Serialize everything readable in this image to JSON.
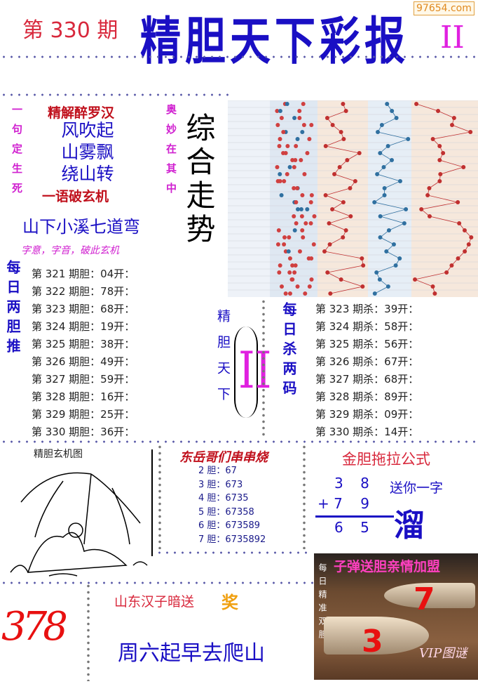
{
  "header": {
    "issue": "第 330 期",
    "title": "精胆天下彩报",
    "title_suffix": "II",
    "watermark": "97654.com"
  },
  "riddle": {
    "left_vertical": "一句定生死",
    "right_vertical": "奥妙在其中",
    "heading": "精解醉罗汉",
    "lines": [
      "风吹起",
      "山雾飘",
      "绕山转"
    ],
    "footer": "一语破玄机",
    "answer": "山下小溪七道弯",
    "hint": "字意，字音，破此玄机"
  },
  "trend": {
    "label": "综合走势"
  },
  "daily_bile": {
    "label": "每日两胆推",
    "rows": [
      "第 321 期胆：04开：",
      "第 322 期胆：78开：",
      "第 323 期胆：68开：",
      "第 324 期胆：19开：",
      "第 325 期胆：38开：",
      "第 326 期胆：49开：",
      "第 327 期胆：59开：",
      "第 328 期胆：16开：",
      "第 329 期胆：25开：",
      "第 330 期胆：36开："
    ]
  },
  "center_mark": {
    "label": "精胆天下",
    "numeral": "II"
  },
  "daily_kill": {
    "label": "每日杀两码",
    "rows": [
      "第 323 期杀：39开：",
      "第 324 期杀：58开：",
      "第 325 期杀：56开：",
      "第 326 期杀：67开：",
      "第 327 期杀：68开：",
      "第 328 期杀：89开：",
      "第 329 期杀：09开：",
      "第 330 期杀：14开："
    ]
  },
  "mystery_picture": {
    "label": "精胆玄机图"
  },
  "skewers": {
    "title": "东岳哥们串串烧",
    "rows": [
      "2 胆：67",
      "3 胆：673",
      "4 胆：6735",
      "5 胆：67358",
      "6 胆：673589",
      "7 胆：6735892"
    ]
  },
  "formula": {
    "title": "金胆拖拉公式",
    "row1": [
      "3",
      "8"
    ],
    "row2_op": "+",
    "row2": [
      "7",
      "9"
    ],
    "result": [
      "6",
      "5"
    ],
    "gift_label": "送你一字",
    "gift_char": "溜"
  },
  "bullet": {
    "title": "子弹送胆亲情加盟",
    "vertical": "每日精准双胆",
    "num1": "7",
    "num2": "3",
    "signature": "VIP图谜"
  },
  "shandong": {
    "title": "山东汉子暗送",
    "award": "奖",
    "handwritten": "378",
    "clue": "周六起早去爬山"
  },
  "colors": {
    "blue": "#1a0fc4",
    "red": "#d8283c",
    "magenta": "#d020d0",
    "dark_red": "#c0101c"
  }
}
